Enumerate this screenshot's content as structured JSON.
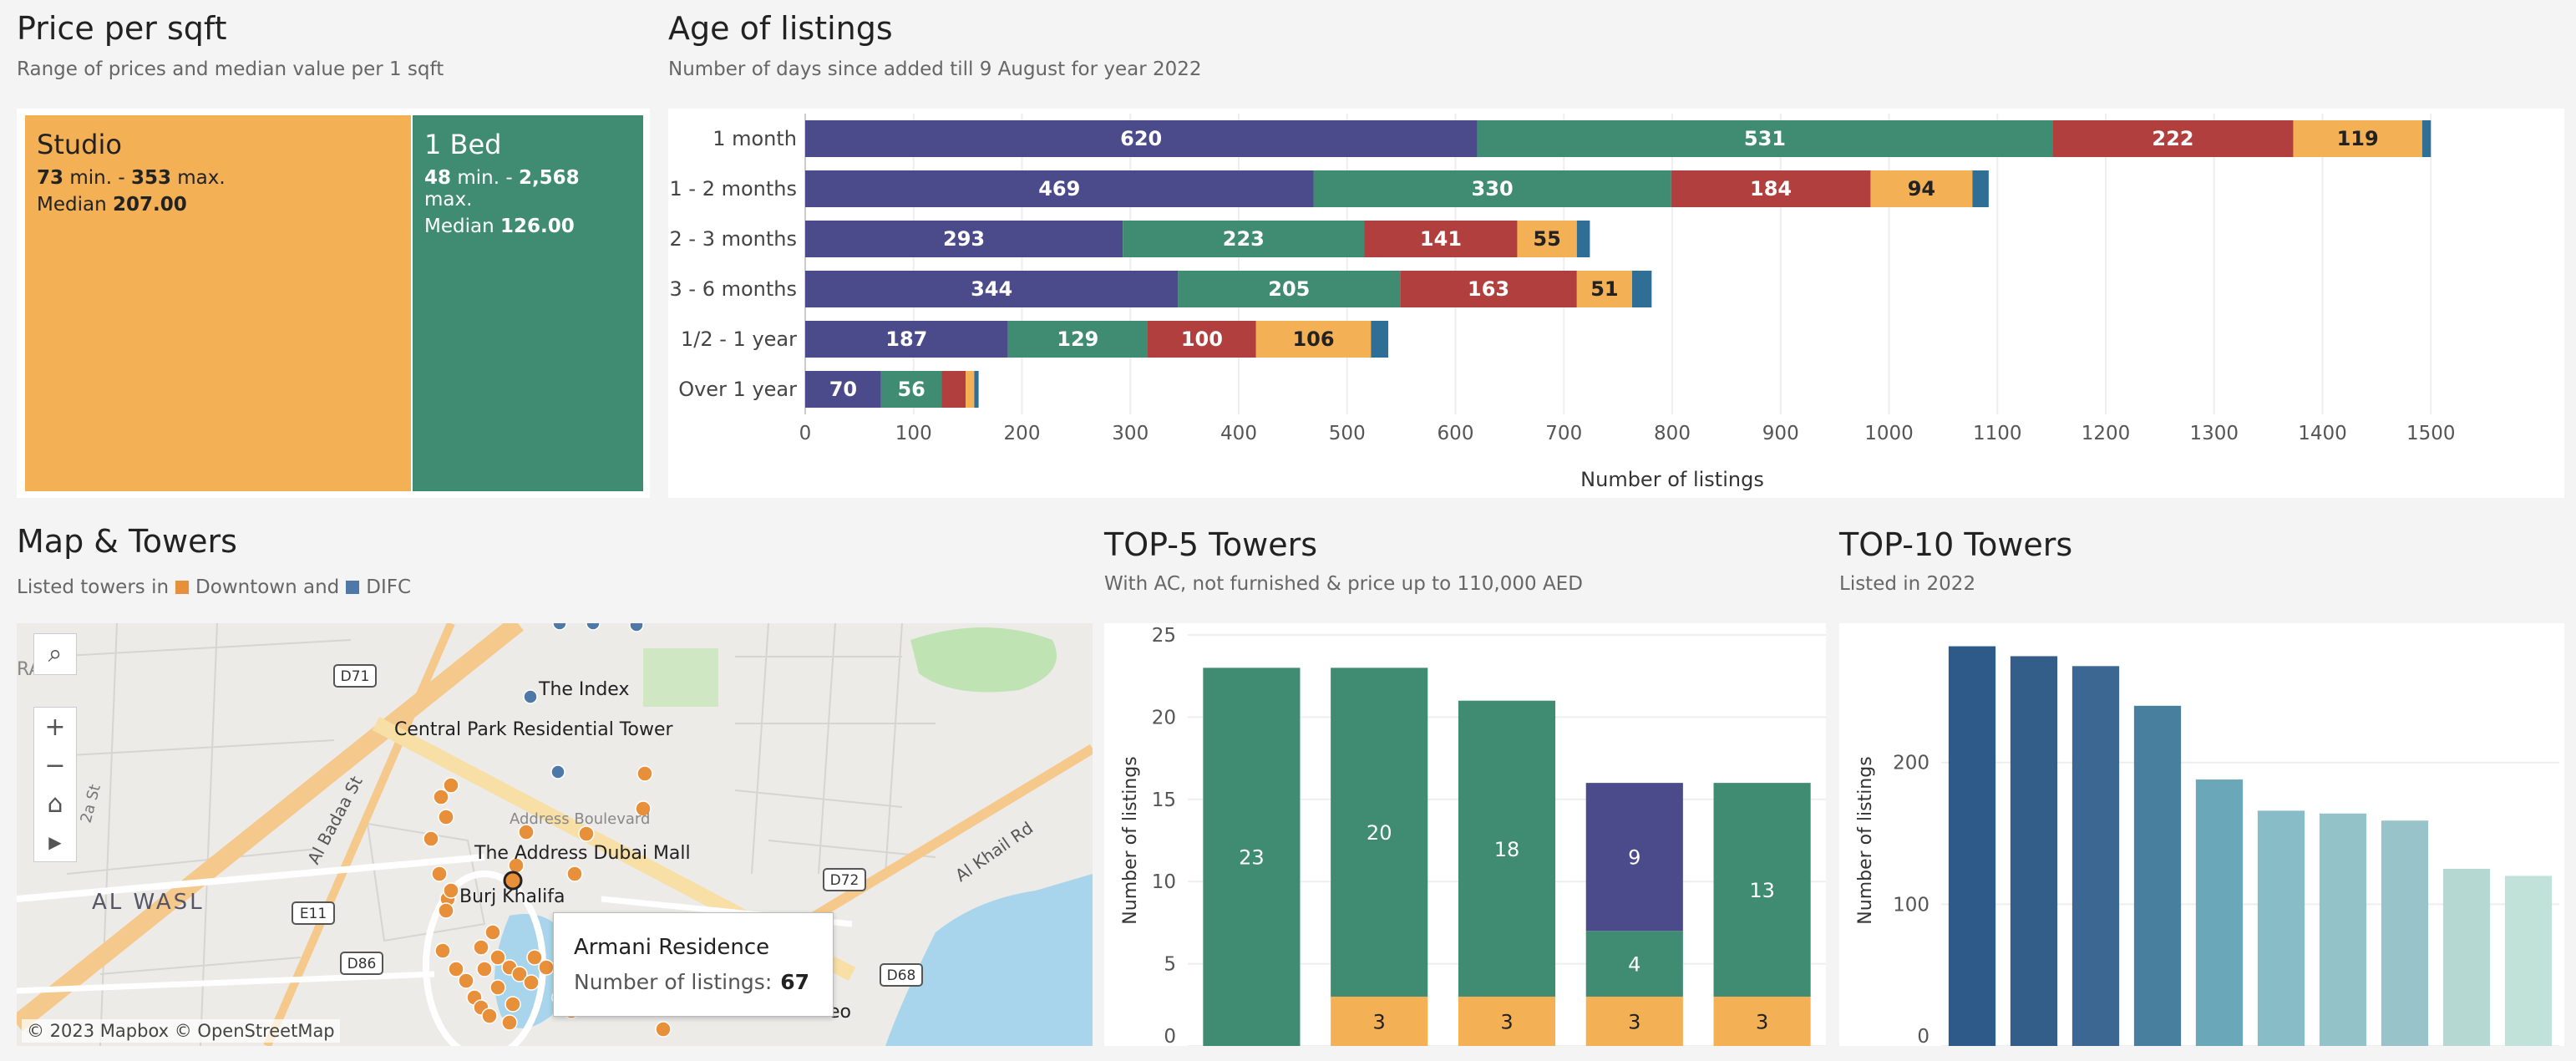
{
  "price": {
    "title": "Price per sqft",
    "subtitle": "Range of prices and median value per 1 sqft",
    "cells": [
      {
        "name": "Studio",
        "min": "73",
        "max": "353",
        "min_suffix": " min. - ",
        "max_suffix": " max.",
        "median_label": "Median ",
        "median": "207.00",
        "color": "#f4b055"
      },
      {
        "name": "1 Bed",
        "min": "48",
        "max": "2,568",
        "min_suffix": " min. - ",
        "max_suffix": " max.",
        "median_label": "Median ",
        "median": "126.00",
        "color": "#3f8c72"
      }
    ]
  },
  "age": {
    "title": "Age of listings",
    "subtitle": "Number of days since added till 9 August for year 2022"
  },
  "map": {
    "title": "Map & Towers",
    "subtitle_prefix": "Listed towers in",
    "legend": [
      {
        "label": "Downtown and",
        "color": "#e88f3a"
      },
      {
        "label": "DIFC",
        "color": "#4e79a7"
      }
    ],
    "labels": {
      "the_index": "The Index",
      "central_park": "Central Park Residential Tower",
      "address_mall": "The Address Dubai Mall",
      "burj_khalifa": "Burj Khalifa",
      "al_wasl": "AL WASL",
      "al_badaa": "Al Badaa St",
      "al_khail": "Al Khail Rd",
      "address_blvd": "Address Boulevard",
      "st_2a": "2a St",
      "ra": "RA",
      "eo": "eo"
    },
    "shields": [
      "D71",
      "E11",
      "D86",
      "D72",
      "D68"
    ],
    "controls": {
      "search": "⌕",
      "zoom_in": "+",
      "zoom_out": "−",
      "home": "⌂",
      "play": "▶"
    },
    "tooltip": {
      "name": "Armani Residence",
      "metric_label": "Number of  listings:",
      "metric_value": "67"
    },
    "attribution": "© 2023 Mapbox  © OpenStreetMap"
  },
  "top5": {
    "title": "TOP-5 Towers",
    "subtitle": "With AC, not furnished & price up to 110,000 AED"
  },
  "top10": {
    "title": "TOP-10 Towers",
    "subtitle": "Listed in 2022"
  },
  "chart_data": [
    {
      "id": "age",
      "type": "bar",
      "orientation": "horizontal",
      "stacked": true,
      "categories": [
        "1 month",
        "1 - 2 months",
        "2 - 3 months",
        "3 - 6 months",
        "1/2 - 1 year",
        "Over 1 year"
      ],
      "series": [
        {
          "values": [
            620,
            469,
            293,
            344,
            187,
            70
          ],
          "color": "#4b4a8a",
          "label_color": "#ffffff"
        },
        {
          "values": [
            531,
            330,
            223,
            205,
            129,
            56
          ],
          "color": "#3f8c72",
          "label_color": "#ffffff"
        },
        {
          "values": [
            222,
            184,
            141,
            163,
            100,
            22
          ],
          "color": "#b13f3d",
          "label_color": "#ffffff"
        },
        {
          "values": [
            119,
            94,
            55,
            51,
            106,
            8
          ],
          "color": "#f4b055",
          "label_color": "#222222"
        },
        {
          "values": [
            8,
            15,
            12,
            18,
            16,
            4
          ],
          "color": "#2f6f96",
          "label_color": "#ffffff"
        }
      ],
      "labeled_series_min": 40,
      "xlabel": "Number of listings",
      "xlim": [
        0,
        1600
      ],
      "xticks": [
        0,
        100,
        200,
        300,
        400,
        500,
        600,
        700,
        800,
        900,
        1000,
        1100,
        1200,
        1300,
        1400,
        1500
      ]
    },
    {
      "id": "top5",
      "type": "bar",
      "stacked": true,
      "categories": [
        "",
        "",
        "",
        "",
        ""
      ],
      "series": [
        {
          "values": [
            0,
            3,
            3,
            3,
            3
          ],
          "color": "#f4b055",
          "label_color": "#222222"
        },
        {
          "values": [
            23,
            20,
            18,
            4,
            13
          ],
          "color": "#3f8c72",
          "label_color": "#ffffff"
        },
        {
          "values": [
            0,
            0,
            0,
            9,
            0
          ],
          "color": "#4b4a8a",
          "label_color": "#ffffff"
        }
      ],
      "ylabel": "Number of listings",
      "ylim": [
        0,
        25
      ],
      "yticks": [
        0,
        5,
        10,
        15,
        20,
        25
      ],
      "grid": true
    },
    {
      "id": "top10",
      "type": "bar",
      "categories": [
        "",
        "",
        "",
        "",
        "",
        "",
        "",
        "",
        "",
        ""
      ],
      "values": [
        282,
        275,
        268,
        240,
        188,
        166,
        164,
        159,
        125,
        120
      ],
      "colors": [
        "#2d5a88",
        "#345e8a",
        "#3b6792",
        "#487f9f",
        "#6aa8b9",
        "#88bcc6",
        "#93c2c9",
        "#97c3c9",
        "#b5d9d2",
        "#c1e2d9"
      ],
      "ylabel": "Number of listings",
      "ylim": [
        0,
        290
      ],
      "yticks": [
        0,
        100,
        200
      ],
      "grid": true
    }
  ]
}
